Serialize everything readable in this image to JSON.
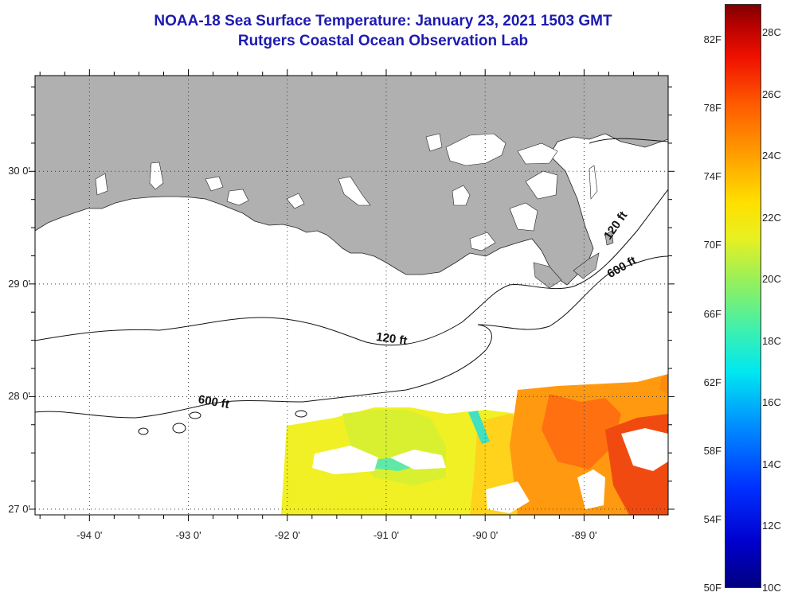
{
  "title": {
    "line1": "NOAA-18 Sea Surface Temperature:  January 23, 2021 1503 GMT",
    "line2": "Rutgers Coastal Ocean Observation Lab"
  },
  "map": {
    "region": "Northern Gulf of Mexico",
    "lon_range": [
      -94.55,
      -88.15
    ],
    "lat_range": [
      26.95,
      30.85
    ],
    "y_ticks": [
      {
        "lat": 30,
        "label": "30 0'"
      },
      {
        "lat": 29,
        "label": "29 0'"
      },
      {
        "lat": 28,
        "label": "28 0'"
      },
      {
        "lat": 27,
        "label": "27 0'"
      }
    ],
    "x_ticks": [
      {
        "lon": -94,
        "label": "-94 0'"
      },
      {
        "lon": -93,
        "label": "-93 0'"
      },
      {
        "lon": -92,
        "label": "-92 0'"
      },
      {
        "lon": -91,
        "label": "-91 0'"
      },
      {
        "lon": -90,
        "label": "-90 0'"
      },
      {
        "lon": -89,
        "label": "-89 0'"
      }
    ],
    "isobaths": [
      {
        "label": "120 ft",
        "label_lon": -90.95,
        "label_lat": 28.48
      },
      {
        "label": "600 ft",
        "label_lon": -92.75,
        "label_lat": 27.92
      },
      {
        "label": "120 ft",
        "label_lon": -88.65,
        "label_lat": 29.5
      },
      {
        "label": "600 ft",
        "label_lon": -88.6,
        "label_lat": 29.12
      }
    ],
    "land_color": "#b0b0b0",
    "grid": "dotted"
  },
  "colorbar": {
    "range_f": [
      50,
      84
    ],
    "range_c": [
      10,
      29
    ],
    "f_labels": [
      "82F",
      "78F",
      "74F",
      "70F",
      "66F",
      "62F",
      "58F",
      "54F",
      "50F"
    ],
    "c_labels": [
      "28C",
      "26C",
      "24C",
      "22C",
      "20C",
      "18C",
      "16C",
      "14C",
      "12C",
      "10C"
    ],
    "colormap": "jet"
  }
}
